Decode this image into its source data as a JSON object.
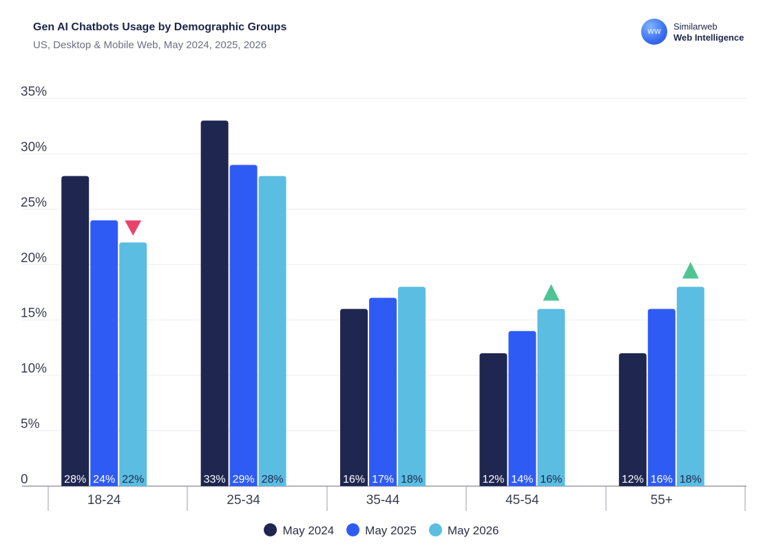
{
  "header": {
    "title": "Gen AI Chatbots Usage by Demographic Groups",
    "subtitle": "US, Desktop & Mobile Web, May 2024, 2025, 2026"
  },
  "brand": {
    "logo_text": "WW",
    "name": "Similarweb",
    "product": "Web Intelligence"
  },
  "colors": {
    "series": [
      "#1f2750",
      "#2f5bf5",
      "#5bbde1"
    ],
    "down_marker": "#e7436d",
    "up_marker": "#4fc394",
    "grid": "#ececf0",
    "axis": "#9a9ca8",
    "text": "#3a3d4f"
  },
  "chart_data": {
    "type": "bar",
    "title": "Gen AI Chatbots Usage by Demographic Groups",
    "subtitle": "US, Desktop & Mobile Web, May 2024, 2025, 2026",
    "categories": [
      "18-24",
      "25-34",
      "35-44",
      "45-54",
      "55+"
    ],
    "series": [
      {
        "name": "May 2024",
        "values": [
          28,
          33,
          16,
          12,
          12
        ],
        "labels": [
          "28%",
          "33%",
          "16%",
          "12%",
          "12%"
        ]
      },
      {
        "name": "May 2025",
        "values": [
          24,
          29,
          17,
          14,
          16
        ],
        "labels": [
          "24%",
          "29%",
          "17%",
          "14%",
          "16%"
        ]
      },
      {
        "name": "May 2026",
        "values": [
          22,
          28,
          18,
          16,
          18
        ],
        "labels": [
          "22%",
          "28%",
          "18%",
          "16%",
          "18%"
        ]
      }
    ],
    "ylim": [
      0,
      35
    ],
    "yticks": [
      "0",
      "5%",
      "10%",
      "15%",
      "20%",
      "25%",
      "30%",
      "35%"
    ],
    "grid": true,
    "legend_position": "bottom",
    "markers": [
      {
        "category": "18-24",
        "series": "May 2026",
        "direction": "down"
      },
      {
        "category": "45-54",
        "series": "May 2026",
        "direction": "up"
      },
      {
        "category": "55+",
        "series": "May 2026",
        "direction": "up"
      }
    ]
  }
}
